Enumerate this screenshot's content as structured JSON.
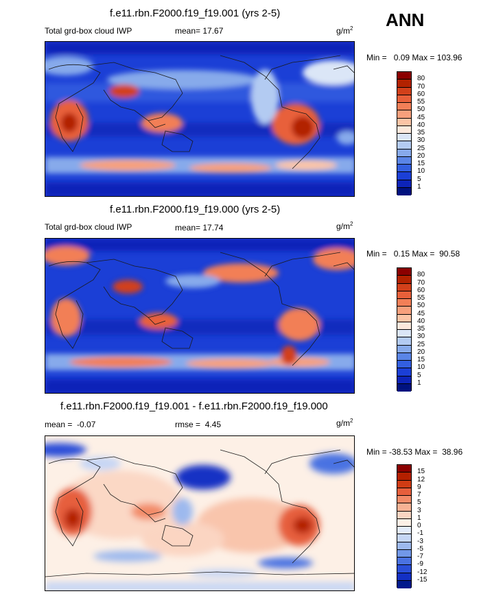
{
  "season": "ANN",
  "units": "g/m",
  "units_exp": "2",
  "coastline_color": "#1a1a1a",
  "panels": [
    {
      "title": "f.e11.rbn.F2000.f19_f19.001 (yrs 2-5)",
      "left_label": "Total grd-box cloud IWP",
      "stat_label": "mean=",
      "stat_value": "17.67",
      "min_label": "Min =",
      "min_value": "0.09",
      "max_label": "Max =",
      "max_value": "103.96",
      "colorbar": {
        "labels": [
          "80",
          "70",
          "60",
          "55",
          "50",
          "45",
          "40",
          "35",
          "30",
          "25",
          "20",
          "15",
          "10",
          "5",
          "1"
        ],
        "colors": [
          "#8b0000",
          "#b22200",
          "#d2401a",
          "#e8603a",
          "#f27f57",
          "#f7a07c",
          "#fcc5a6",
          "#fbe9dc",
          "#dbe6f7",
          "#b3cbf2",
          "#87aaeb",
          "#5a85e6",
          "#335fe0",
          "#1b3fd6",
          "#0d24b8",
          "#00127f"
        ]
      }
    },
    {
      "title": "f.e11.rbn.F2000.f19_f19.000 (yrs 2-5)",
      "left_label": "Total grd-box cloud IWP",
      "stat_label": "mean=",
      "stat_value": "17.74",
      "min_label": "Min =",
      "min_value": "0.15",
      "max_label": "Max =",
      "max_value": "90.58",
      "colorbar": {
        "labels": [
          "80",
          "70",
          "60",
          "55",
          "50",
          "45",
          "40",
          "35",
          "30",
          "25",
          "20",
          "15",
          "10",
          "5",
          "1"
        ],
        "colors": [
          "#8b0000",
          "#b22200",
          "#d2401a",
          "#e8603a",
          "#f27f57",
          "#f7a07c",
          "#fcc5a6",
          "#fbe9dc",
          "#dbe6f7",
          "#b3cbf2",
          "#87aaeb",
          "#5a85e6",
          "#335fe0",
          "#1b3fd6",
          "#0d24b8",
          "#00127f"
        ]
      }
    },
    {
      "title": "f.e11.rbn.F2000.f19_f19.001 - f.e11.rbn.F2000.f19_f19.000",
      "mean_label": "mean =",
      "mean_value": "-0.07",
      "stat_label": "rmse =",
      "stat_value": "4.45",
      "min_label": "Min =",
      "min_value": "-38.53",
      "max_label": "Max =",
      "max_value": "38.96",
      "colorbar": {
        "labels": [
          "15",
          "12",
          "9",
          "7",
          "5",
          "3",
          "1",
          "0",
          "-1",
          "-3",
          "-5",
          "-7",
          "-9",
          "-12",
          "-15"
        ],
        "colors": [
          "#8b0000",
          "#b42000",
          "#d03c14",
          "#e65f3c",
          "#f28b68",
          "#f7b294",
          "#fbd5c2",
          "#fdf0e6",
          "#e4ecfa",
          "#c6d6f5",
          "#9db9ee",
          "#7197e8",
          "#4a72e2",
          "#2a4ed8",
          "#1330c4",
          "#001a8c"
        ]
      }
    }
  ]
}
